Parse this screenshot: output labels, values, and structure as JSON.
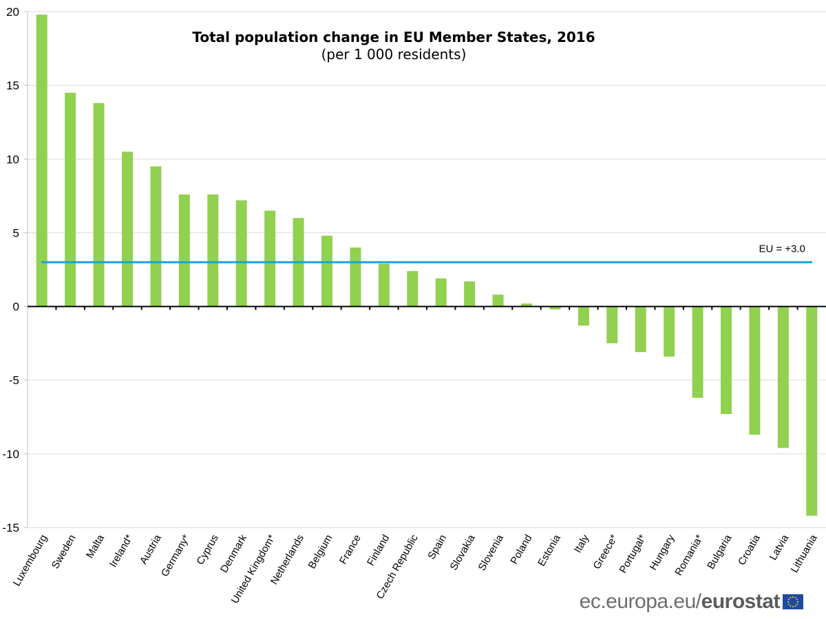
{
  "chart_data": {
    "type": "bar",
    "title": "Total population change in EU Member States, 2016",
    "subtitle": "(per 1 000 residents)",
    "xlabel": "",
    "ylabel": "",
    "ylim": [
      -15,
      20
    ],
    "yticks": [
      20,
      15,
      10,
      5,
      0,
      -5,
      -10,
      -15
    ],
    "grid": true,
    "bar_color": "#92d050",
    "categories": [
      "Luxembourg",
      "Sweden",
      "Malta",
      "Ireland*",
      "Austria",
      "Germany*",
      "Cyprus",
      "Denmark",
      "United Kingdom*",
      "Netherlands",
      "Belgium",
      "France",
      "Finland",
      "Czech Republic",
      "Spain",
      "Slovakia",
      "Slovenia",
      "Poland",
      "Estonia",
      "Italy",
      "Greece*",
      "Portugal*",
      "Hungary",
      "Romania*",
      "Bulgaria",
      "Croatia",
      "Latvia",
      "Lithuania"
    ],
    "values": [
      19.8,
      14.5,
      13.8,
      10.5,
      9.5,
      7.6,
      7.6,
      7.2,
      6.5,
      6.0,
      4.8,
      4.0,
      2.9,
      2.4,
      1.9,
      1.7,
      0.8,
      0.2,
      -0.2,
      -1.3,
      -2.5,
      -3.1,
      -3.4,
      -6.2,
      -7.3,
      -8.7,
      -9.6,
      -14.2
    ],
    "reference_line": {
      "label": "EU = +3.0",
      "value": 3.0,
      "color": "#1ba1dc"
    }
  },
  "footer": {
    "site": "ec.europa.eu/",
    "brand": "eurostat"
  }
}
